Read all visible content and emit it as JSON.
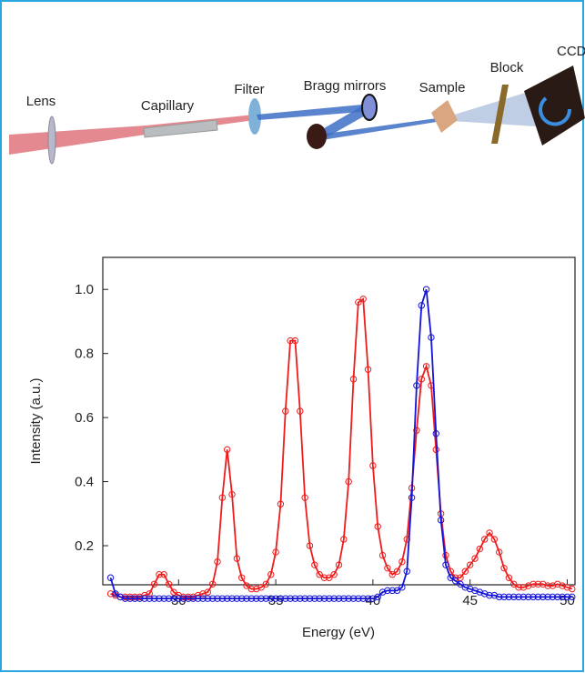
{
  "diagram": {
    "labels": [
      "Lens",
      "Capillary",
      "Filter",
      "Bragg mirrors",
      "Sample",
      "Block",
      "CCD"
    ]
  },
  "chart_data": {
    "type": "line",
    "xlabel": "Energy (eV)",
    "ylabel": "Intensity (a.u.)",
    "xlim": [
      26.1,
      50.4
    ],
    "ylim": [
      0.078,
      1.1
    ],
    "xticks": [
      30,
      35,
      40,
      45,
      50
    ],
    "yticks": [
      0.2,
      0.4,
      0.6,
      0.8,
      {
        "value": 1,
        "label": "1.0"
      }
    ],
    "x": [
      26.5,
      26.75,
      27,
      27.25,
      27.5,
      27.75,
      28,
      28.25,
      28.5,
      28.75,
      29,
      29.25,
      29.5,
      29.75,
      30,
      30.25,
      30.5,
      30.75,
      31,
      31.25,
      31.5,
      31.75,
      32,
      32.25,
      32.5,
      32.75,
      33,
      33.25,
      33.5,
      33.75,
      34,
      34.25,
      34.5,
      34.75,
      35,
      35.25,
      35.5,
      35.75,
      36,
      36.25,
      36.5,
      36.75,
      37,
      37.25,
      37.5,
      37.75,
      38,
      38.25,
      38.5,
      38.75,
      39,
      39.25,
      39.5,
      39.75,
      40,
      40.25,
      40.5,
      40.75,
      41,
      41.25,
      41.5,
      41.75,
      42,
      42.25,
      42.5,
      42.75,
      43,
      43.25,
      43.5,
      43.75,
      44,
      44.25,
      44.5,
      44.75,
      45,
      45.25,
      45.5,
      45.75,
      46,
      46.25,
      46.5,
      46.75,
      47,
      47.25,
      47.5,
      47.75,
      48,
      48.25,
      48.5,
      48.75,
      49,
      49.25,
      49.5,
      49.75,
      50,
      50.25
    ],
    "series": [
      {
        "color": "#ee1c1c",
        "values": [
          0.05,
          0.045,
          0.04,
          0.04,
          0.04,
          0.04,
          0.04,
          0.045,
          0.05,
          0.08,
          0.11,
          0.11,
          0.08,
          0.055,
          0.045,
          0.04,
          0.04,
          0.04,
          0.045,
          0.05,
          0.055,
          0.08,
          0.15,
          0.35,
          0.5,
          0.36,
          0.16,
          0.1,
          0.075,
          0.065,
          0.065,
          0.07,
          0.08,
          0.11,
          0.18,
          0.33,
          0.62,
          0.84,
          0.84,
          0.62,
          0.35,
          0.2,
          0.14,
          0.11,
          0.1,
          0.1,
          0.11,
          0.14,
          0.22,
          0.4,
          0.72,
          0.96,
          0.97,
          0.75,
          0.45,
          0.26,
          0.17,
          0.13,
          0.11,
          0.12,
          0.15,
          0.22,
          0.38,
          0.56,
          0.72,
          0.76,
          0.7,
          0.5,
          0.3,
          0.17,
          0.12,
          0.1,
          0.1,
          0.12,
          0.14,
          0.16,
          0.19,
          0.22,
          0.24,
          0.22,
          0.18,
          0.13,
          0.1,
          0.08,
          0.07,
          0.07,
          0.075,
          0.08,
          0.08,
          0.08,
          0.075,
          0.075,
          0.08,
          0.075,
          0.07,
          0.065
        ]
      },
      {
        "color": "#1414d8",
        "values": [
          0.1,
          0.05,
          0.04,
          0.035,
          0.035,
          0.035,
          0.035,
          0.035,
          0.035,
          0.035,
          0.035,
          0.035,
          0.035,
          0.035,
          0.035,
          0.035,
          0.035,
          0.035,
          0.035,
          0.035,
          0.035,
          0.035,
          0.035,
          0.035,
          0.035,
          0.035,
          0.035,
          0.035,
          0.035,
          0.035,
          0.035,
          0.035,
          0.035,
          0.035,
          0.035,
          0.035,
          0.035,
          0.035,
          0.035,
          0.035,
          0.035,
          0.035,
          0.035,
          0.035,
          0.035,
          0.035,
          0.035,
          0.035,
          0.035,
          0.035,
          0.035,
          0.035,
          0.035,
          0.035,
          0.035,
          0.04,
          0.055,
          0.06,
          0.06,
          0.06,
          0.07,
          0.12,
          0.35,
          0.7,
          0.95,
          1.0,
          0.85,
          0.55,
          0.28,
          0.14,
          0.1,
          0.09,
          0.08,
          0.07,
          0.065,
          0.06,
          0.055,
          0.05,
          0.045,
          0.045,
          0.04,
          0.04,
          0.04,
          0.04,
          0.04,
          0.04,
          0.04,
          0.04,
          0.04,
          0.04,
          0.04,
          0.04,
          0.04,
          0.04,
          0.04,
          0.04
        ]
      }
    ]
  }
}
